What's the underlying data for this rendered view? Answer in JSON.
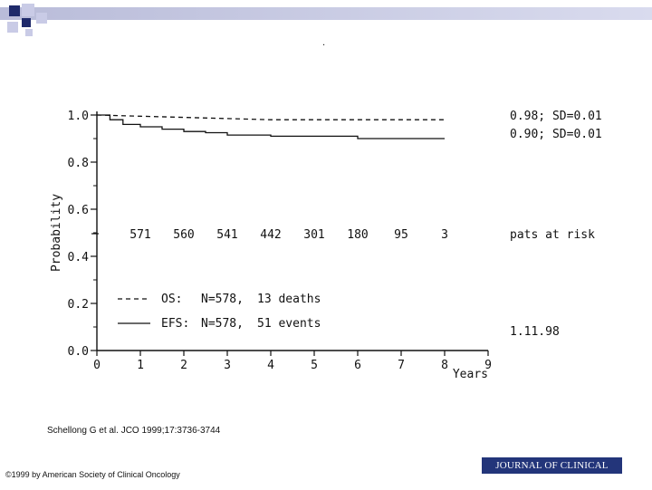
{
  "chart_data": {
    "type": "line",
    "xlabel": "Years",
    "ylabel": "Probability",
    "xlim": [
      0,
      9
    ],
    "ylim": [
      0,
      1.0
    ],
    "x_ticks": [
      "0",
      "1",
      "2",
      "3",
      "4",
      "5",
      "6",
      "7",
      "8",
      "9"
    ],
    "y_ticks": [
      "0.0",
      "0.2",
      "0.4",
      "0.6",
      "0.8",
      "1.0"
    ],
    "series": [
      {
        "name": "OS",
        "style": "dashed",
        "x": [
          0,
          1,
          2,
          3,
          4,
          5,
          6,
          7,
          8
        ],
        "y": [
          1.0,
          0.995,
          0.99,
          0.985,
          0.98,
          0.98,
          0.98,
          0.98,
          0.98
        ],
        "end_label": "0.98; SD=0.01"
      },
      {
        "name": "EFS",
        "style": "solid",
        "x": [
          0,
          0.3,
          0.6,
          1,
          1.5,
          2,
          2.5,
          3,
          4,
          5,
          6,
          7,
          8
        ],
        "y": [
          1.0,
          0.98,
          0.96,
          0.95,
          0.94,
          0.93,
          0.925,
          0.915,
          0.91,
          0.91,
          0.9,
          0.9,
          0.9
        ],
        "end_label": "0.90; SD=0.01"
      }
    ],
    "at_risk": {
      "label": "pats at risk",
      "x": [
        1,
        2,
        3,
        4,
        5,
        6,
        7,
        8
      ],
      "values": [
        "571",
        "560",
        "541",
        "442",
        "301",
        "180",
        "95",
        "3"
      ]
    },
    "legend": [
      {
        "label": "OS:",
        "n": "N=578,",
        "detail": "13 deaths",
        "style": "dashed"
      },
      {
        "label": "EFS:",
        "n": "N=578,",
        "detail": "51 events",
        "style": "solid"
      }
    ],
    "date_label": "1.11.98"
  },
  "dot": ".",
  "citation": "Schellong G et al. JCO 1999;17:3736-3744",
  "copyright": "©1999 by American Society of Clinical Oncology",
  "journal": "JOURNAL OF CLINICAL ONCOLOGY"
}
